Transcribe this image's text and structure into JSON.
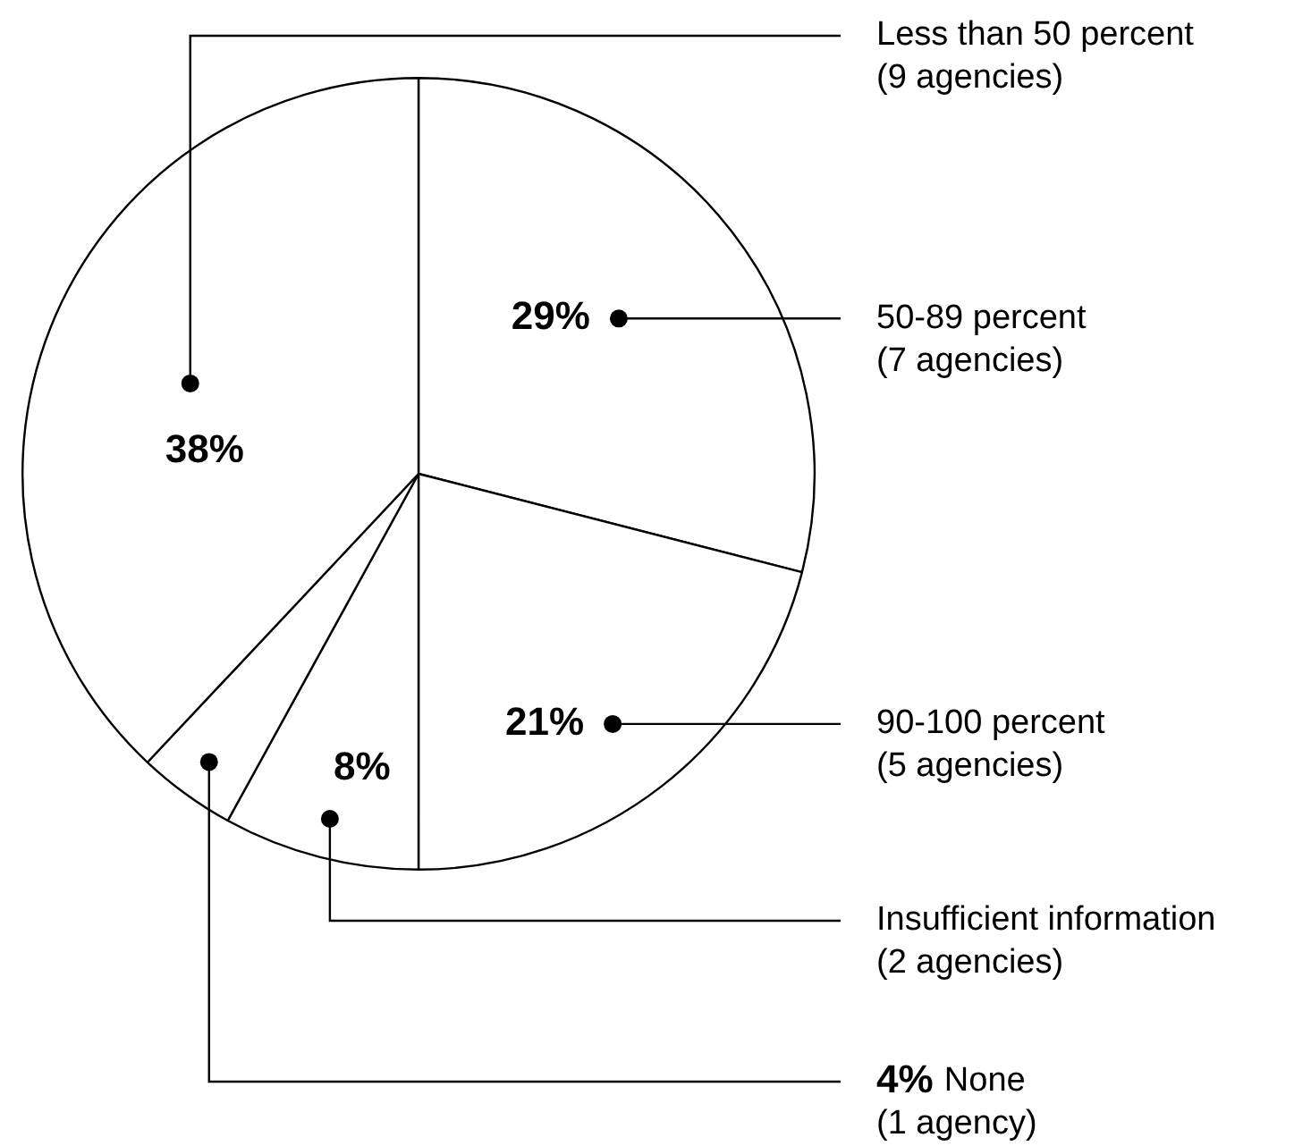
{
  "chart_data": {
    "type": "pie",
    "categories": [
      "50-89 percent (7 agencies)",
      "90-100 percent (5 agencies)",
      "Insufficient information (2 agencies)",
      "None (1 agency)",
      "Less than 50 percent (9 agencies)"
    ],
    "values": [
      29,
      21,
      8,
      4,
      38
    ],
    "colors": [
      "#ffffff",
      "#ffffff",
      "#ffffff",
      "#ffffff",
      "#ffffff"
    ],
    "value_labels": [
      "29%",
      "21%",
      "8%",
      "4%",
      "38%"
    ],
    "legend": false
  }
}
